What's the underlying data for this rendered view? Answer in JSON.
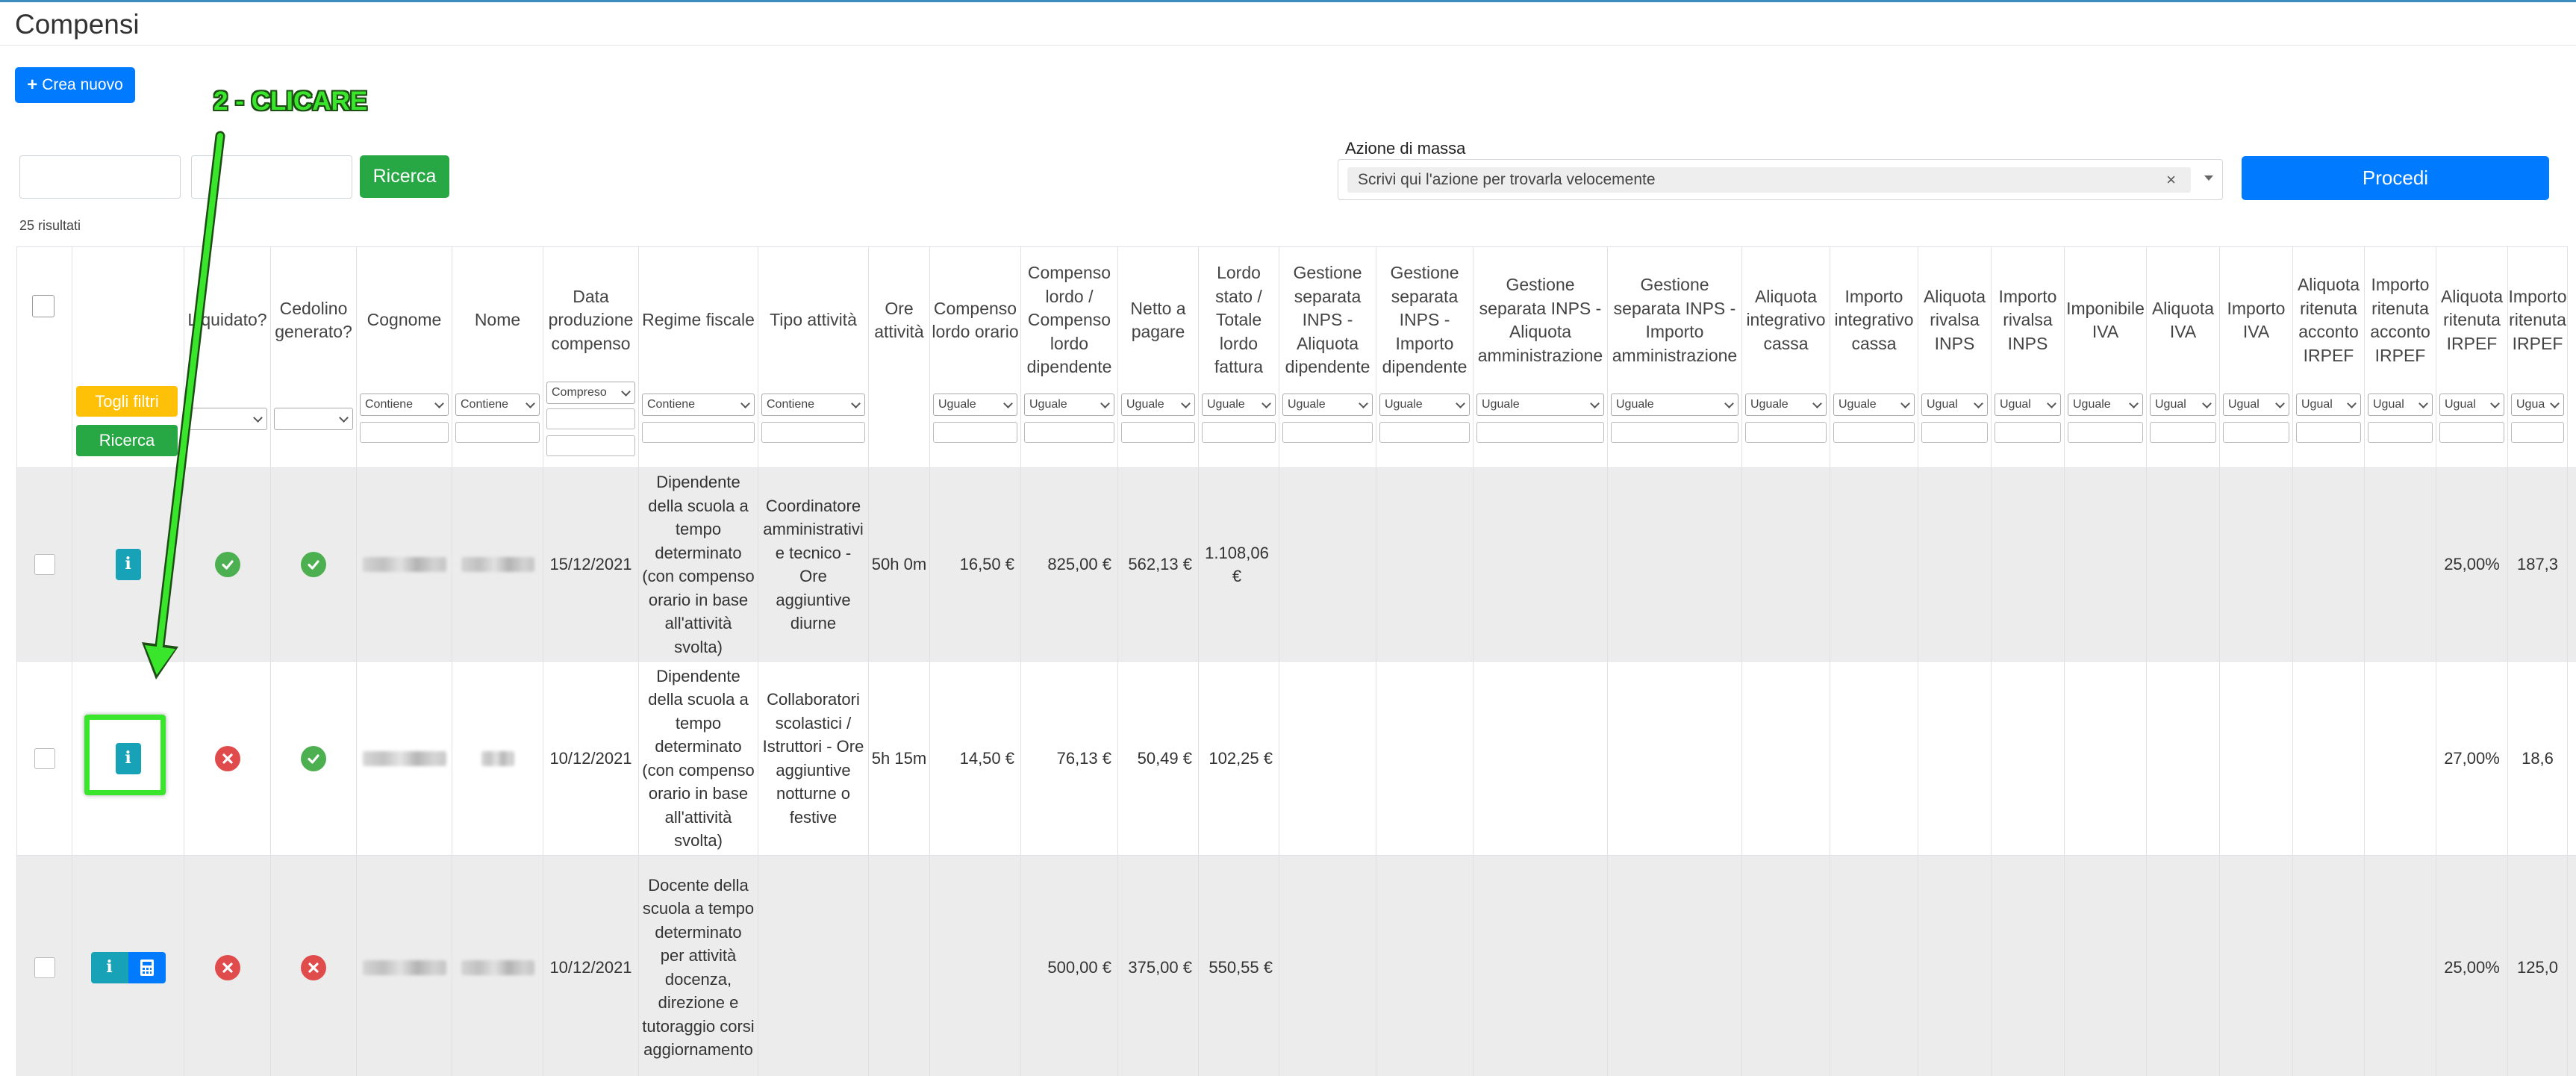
{
  "page": {
    "title": "Compensi",
    "new_button": "Crea nuovo",
    "search_button": "Ricerca",
    "results_count": "25 risultati",
    "mass_action_label": "Azione di massa",
    "mass_action_placeholder": "Scrivi qui l'azione per trovarla velocemente",
    "mass_action_clear": "×",
    "proceed_button": "Procedi"
  },
  "annotation": {
    "text": "2 - CLICARE"
  },
  "table": {
    "clear_filters": "Togli filtri",
    "search_filter": "Ricerca",
    "columns": [
      {
        "label": "",
        "filter": ""
      },
      {
        "label": "",
        "filter": ""
      },
      {
        "label": "Liquidato?",
        "filter": ""
      },
      {
        "label": "Cedolino generato?",
        "filter": ""
      },
      {
        "label": "Cognome",
        "filter": "Contiene"
      },
      {
        "label": "Nome",
        "filter": "Contiene"
      },
      {
        "label": "Data produzione compenso",
        "filter": "Compreso"
      },
      {
        "label": "Regime fiscale",
        "filter": "Contiene"
      },
      {
        "label": "Tipo attività",
        "filter": "Contiene"
      },
      {
        "label": "Ore attività",
        "filter": ""
      },
      {
        "label": "Compenso lordo orario",
        "filter": "Uguale"
      },
      {
        "label": "Compenso lordo / Compenso lordo dipendente",
        "filter": "Uguale"
      },
      {
        "label": "Netto a pagare",
        "filter": "Uguale"
      },
      {
        "label": "Lordo stato / Totale lordo fattura",
        "filter": "Uguale"
      },
      {
        "label": "Gestione separata INPS - Aliquota dipendente",
        "filter": "Uguale"
      },
      {
        "label": "Gestione separata INPS - Importo dipendente",
        "filter": "Uguale"
      },
      {
        "label": "Gestione separata INPS - Aliquota amministrazione",
        "filter": "Uguale"
      },
      {
        "label": "Gestione separata INPS - Importo amministrazione",
        "filter": "Uguale"
      },
      {
        "label": "Aliquota integrativo cassa",
        "filter": "Uguale"
      },
      {
        "label": "Importo integrativo cassa",
        "filter": "Uguale"
      },
      {
        "label": "Aliquota rivalsa INPS",
        "filter": "Ugual"
      },
      {
        "label": "Importo rivalsa INPS",
        "filter": "Ugual"
      },
      {
        "label": "Imponibile IVA",
        "filter": "Uguale"
      },
      {
        "label": "Aliquota IVA",
        "filter": "Ugual"
      },
      {
        "label": "Importo IVA",
        "filter": "Ugual"
      },
      {
        "label": "Aliquota ritenuta acconto IRPEF",
        "filter": "Ugual"
      },
      {
        "label": "Importo ritenuta acconto IRPEF",
        "filter": "Ugual"
      },
      {
        "label": "Aliquota ritenuta IRPEF",
        "filter": "Ugual"
      },
      {
        "label": "Importo ritenuta IRPEF",
        "filter": "Ugua"
      }
    ],
    "rows": [
      {
        "liquidato": "ok",
        "cedolino": "ok",
        "data": "15/12/2021",
        "regime": "Dipendente della scuola a tempo determinato (con compenso orario in base all'attività svolta)",
        "tipo": "Coordinatore amministrativi e tecnico - Ore aggiuntive diurne",
        "ore": "50h 0m",
        "lordo_orario": "16,50 €",
        "lordo": "825,00 €",
        "netto": "562,13 €",
        "lordo_stato": "1.108,06 €",
        "aliquota_irpef": "25,00%",
        "importo_irpef": "187,3"
      },
      {
        "liquidato": "ko",
        "cedolino": "ok",
        "data": "10/12/2021",
        "regime": "Dipendente della scuola a tempo determinato (con compenso orario in base all'attività svolta)",
        "tipo": "Collaboratori scolastici / Istruttori - Ore aggiuntive notturne o festive",
        "ore": "5h 15m",
        "lordo_orario": "14,50 €",
        "lordo": "76,13 €",
        "netto": "50,49 €",
        "lordo_stato": "102,25 €",
        "aliquota_irpef": "27,00%",
        "importo_irpef": "18,6"
      },
      {
        "liquidato": "ko",
        "cedolino": "ko",
        "data": "10/12/2021",
        "regime": "Docente della scuola a tempo determinato per attività docenza, direzione e tutoraggio corsi aggiornamento",
        "tipo": "",
        "ore": "",
        "lordo_orario": "",
        "lordo": "500,00 €",
        "netto": "375,00 €",
        "lordo_stato": "550,55 €",
        "aliquota_irpef": "25,00%",
        "importo_irpef": "125,0"
      }
    ]
  },
  "colors": {
    "primary": "#007bff",
    "success": "#28a745",
    "warning": "#ffc107",
    "info": "#17a2b8",
    "danger": "#e04b4b",
    "annotation": "#39e62c"
  },
  "icons": {
    "info": "info-icon",
    "calculator": "calculator-icon",
    "ok": "check-circle-icon",
    "ko": "x-circle-icon",
    "plus": "plus-icon"
  }
}
